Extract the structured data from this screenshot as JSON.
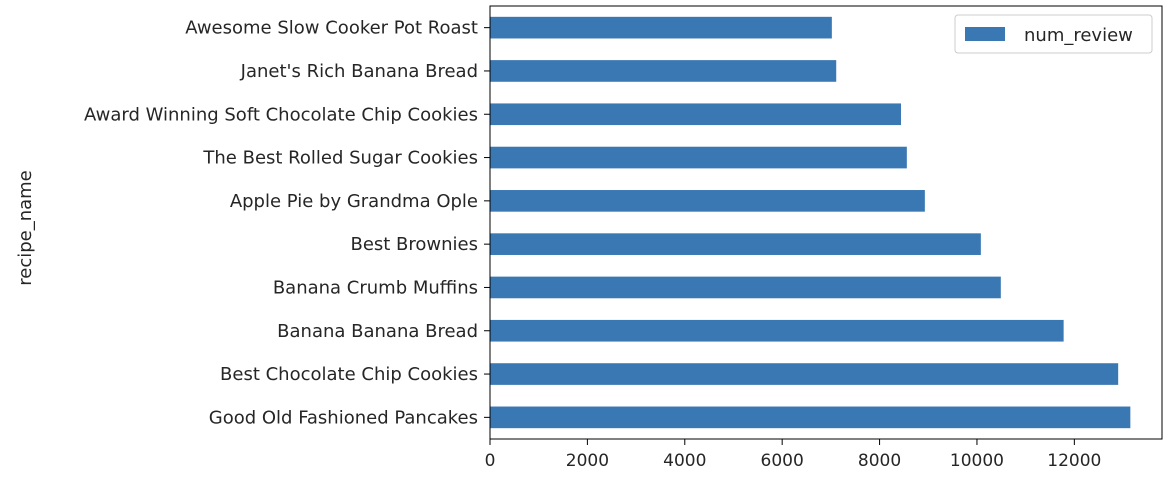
{
  "chart_data": {
    "type": "bar",
    "orientation": "horizontal",
    "categories": [
      "Awesome Slow Cooker Pot Roast",
      "Janet's Rich Banana Bread",
      "Award Winning Soft Chocolate Chip Cookies",
      "The Best Rolled Sugar Cookies",
      "Apple Pie by Grandma Ople",
      "Best Brownies",
      "Banana Crumb Muffins",
      "Banana Banana Bread",
      "Best Chocolate Chip Cookies",
      "Good Old Fashioned Pancakes"
    ],
    "series": [
      {
        "name": "num_review",
        "color": "#3a78b3",
        "values": [
          7020,
          7110,
          8440,
          8560,
          8930,
          10080,
          10490,
          11780,
          12900,
          13150
        ]
      }
    ],
    "title": "",
    "xlabel": "",
    "ylabel": "recipe_name",
    "xlim": [
      0,
      13800
    ],
    "xticks": [
      0,
      2000,
      4000,
      6000,
      8000,
      10000,
      12000
    ],
    "grid": false,
    "legend_position": "top-right"
  }
}
